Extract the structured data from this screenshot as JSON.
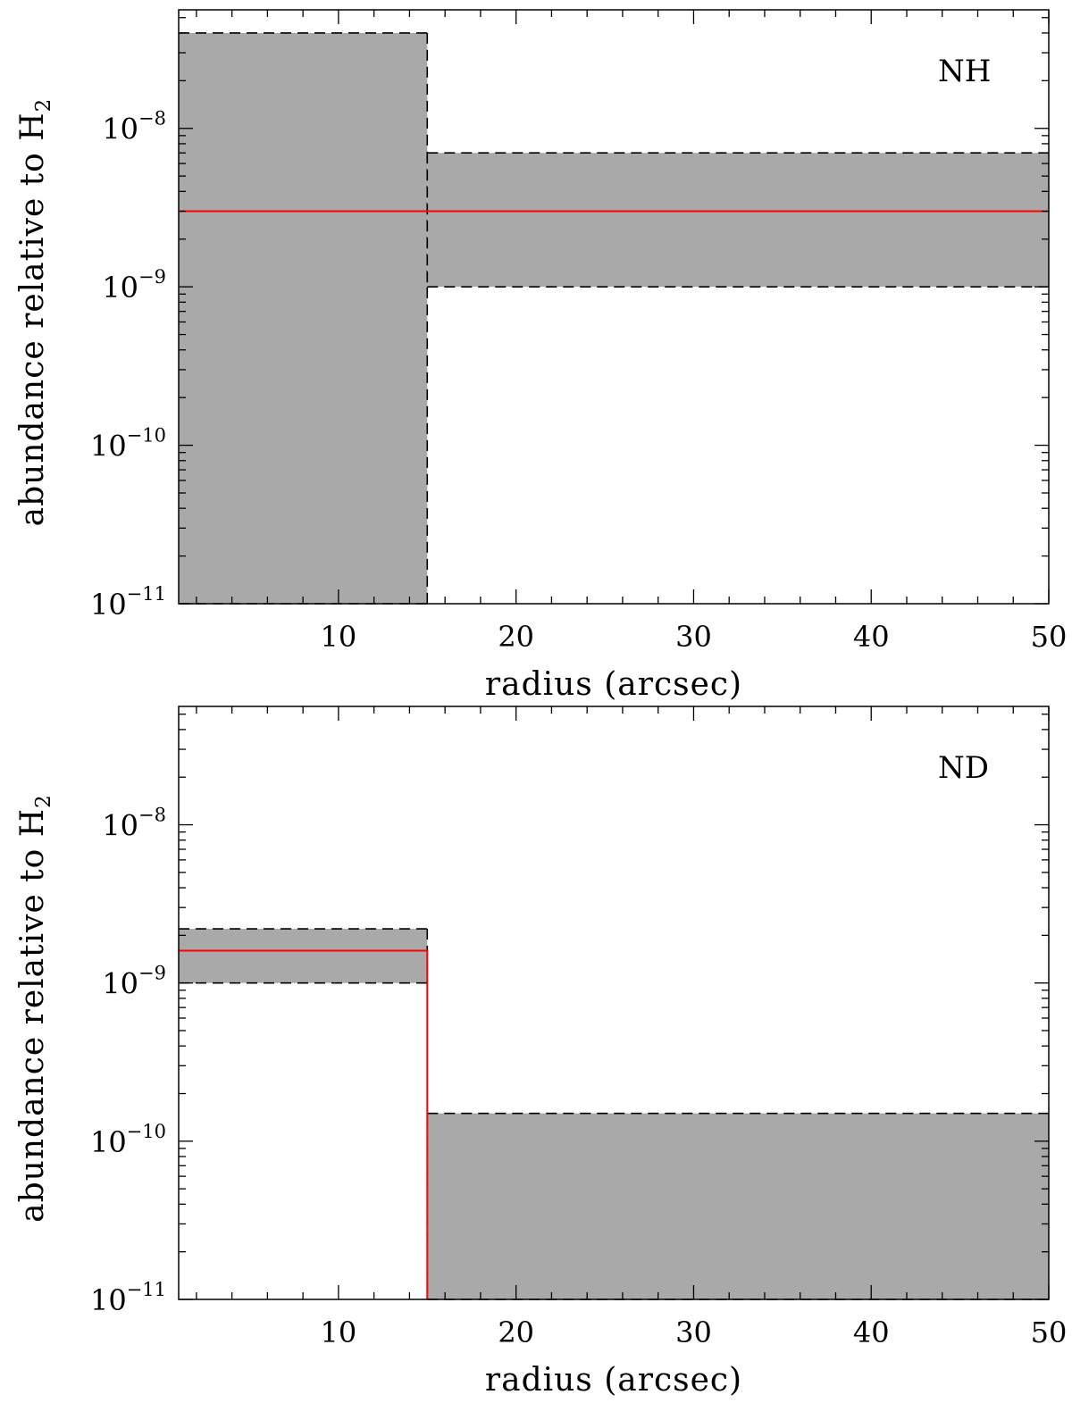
{
  "chart_data": [
    {
      "type": "area",
      "annotation": "NH",
      "xlabel": "radius (arcsec)",
      "ylabel": "abundance relative to H",
      "ylabel_sub": "2",
      "xlim": [
        1,
        50
      ],
      "ylim": [
        1e-11,
        5.6e-08
      ],
      "yscale": "log",
      "xticks": [
        10,
        20,
        30,
        40,
        50
      ],
      "yticks": [
        {
          "base": "10",
          "exp": "−11",
          "value": 1e-11
        },
        {
          "base": "10",
          "exp": "−10",
          "value": 1e-10
        },
        {
          "base": "10",
          "exp": "−9",
          "value": 1e-09
        },
        {
          "base": "10",
          "exp": "−8",
          "value": 1e-08
        }
      ],
      "bands": [
        {
          "x": [
            1,
            15
          ],
          "low": 1e-11,
          "high": 4e-08
        },
        {
          "x": [
            15,
            50
          ],
          "low": 1e-09,
          "high": 7e-09
        }
      ],
      "series": [
        {
          "x": [
            1,
            50
          ],
          "y": [
            3e-09,
            3e-09
          ]
        }
      ],
      "colors": {
        "band": "#a9a9a9",
        "model": "#ff0000",
        "bound": "#000000"
      }
    },
    {
      "type": "area",
      "annotation": "ND",
      "xlabel": "radius (arcsec)",
      "ylabel": "abundance relative to H",
      "ylabel_sub": "2",
      "xlim": [
        1,
        50
      ],
      "ylim": [
        1e-11,
        5.6e-08
      ],
      "yscale": "log",
      "xticks": [
        10,
        20,
        30,
        40,
        50
      ],
      "yticks": [
        {
          "base": "10",
          "exp": "−11",
          "value": 1e-11
        },
        {
          "base": "10",
          "exp": "−10",
          "value": 1e-10
        },
        {
          "base": "10",
          "exp": "−9",
          "value": 1e-09
        },
        {
          "base": "10",
          "exp": "−8",
          "value": 1e-08
        }
      ],
      "bands": [
        {
          "x": [
            1,
            15
          ],
          "low": 1e-09,
          "high": 2.2e-09
        },
        {
          "x": [
            15,
            50
          ],
          "low": 1e-11,
          "high": 1.5e-10
        }
      ],
      "series": [
        {
          "x": [
            1,
            15,
            15
          ],
          "y": [
            1.6e-09,
            1.6e-09,
            1e-11
          ]
        }
      ],
      "colors": {
        "band": "#a9a9a9",
        "model": "#ff0000",
        "bound": "#000000"
      }
    }
  ]
}
